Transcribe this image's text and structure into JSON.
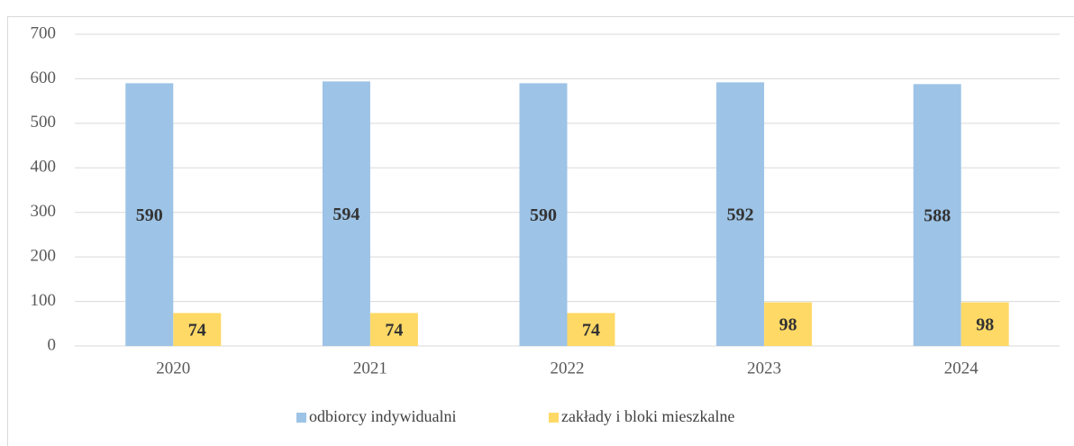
{
  "chart_data": {
    "type": "bar",
    "categories": [
      "2020",
      "2021",
      "2022",
      "2023",
      "2024"
    ],
    "series": [
      {
        "name": "odbiorcy indywidualni",
        "color": "#9dc3e6",
        "values": [
          590,
          594,
          590,
          592,
          588
        ]
      },
      {
        "name": "zakłady i bloki mieszkalne",
        "color": "#ffd966",
        "values": [
          74,
          74,
          74,
          98,
          98
        ]
      }
    ],
    "ylim": [
      0,
      700
    ],
    "yticks": [
      0,
      100,
      200,
      300,
      400,
      500,
      600,
      700
    ],
    "grid": true,
    "legend": "bottom"
  }
}
